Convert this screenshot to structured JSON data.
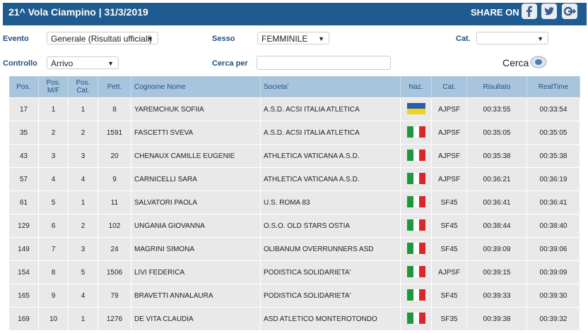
{
  "header": {
    "title": "21^ Vola Ciampino | 31/3/2019",
    "share": "SHARE ON"
  },
  "filters": {
    "evento_label": "Evento",
    "evento_value": "Generale (Risultati ufficiali)",
    "sesso_label": "Sesso",
    "sesso_value": "FEMMINILE",
    "cat_label": "Cat.",
    "controllo_label": "Controllo",
    "controllo_value": "Arrivo",
    "cerca_per_label": "Cerca per",
    "cerca_button": "Cerca"
  },
  "table": {
    "columns": [
      "Pos.",
      "Pos. M/F",
      "Pos. Cat.",
      "Pett.",
      "Cognome Nome",
      "Societa'",
      "Naz.",
      "Cat.",
      "Risultato",
      "RealTime"
    ],
    "rows": [
      {
        "pos": 17,
        "pos_mf": 1,
        "pos_cat": 1,
        "pett": 8,
        "name": "YAREMCHUK SOFIIA",
        "club": "A.S.D. ACSI ITALIA ATLETICA",
        "cat": "AJPSF",
        "result": "00:33:55",
        "realtime": "00:33:54"
      },
      {
        "pos": 35,
        "pos_mf": 2,
        "pos_cat": 2,
        "pett": 1591,
        "name": "FASCETTI SVEVA",
        "club": "A.S.D. ACSI ITALIA ATLETICA",
        "cat": "AJPSF",
        "result": "00:35:05",
        "realtime": "00:35:05"
      },
      {
        "pos": 43,
        "pos_mf": 3,
        "pos_cat": 3,
        "pett": 20,
        "name": "CHENAUX CAMILLE EUGENIE",
        "club": "ATHLETICA VATICANA A.S.D.",
        "cat": "AJPSF",
        "result": "00:35:38",
        "realtime": "00:35:38"
      },
      {
        "pos": 57,
        "pos_mf": 4,
        "pos_cat": 4,
        "pett": 9,
        "name": "CARNICELLI SARA",
        "club": "ATHLETICA VATICANA A.S.D.",
        "cat": "AJPSF",
        "result": "00:36:21",
        "realtime": "00:36:19"
      },
      {
        "pos": 61,
        "pos_mf": 5,
        "pos_cat": 1,
        "pett": 11,
        "name": "SALVATORI PAOLA",
        "club": "U.S. ROMA 83",
        "cat": "SF45",
        "result": "00:36:41",
        "realtime": "00:36:41"
      },
      {
        "pos": 129,
        "pos_mf": 6,
        "pos_cat": 2,
        "pett": 102,
        "name": "UNGANIA GIOVANNA",
        "club": "O.S.O. OLD STARS OSTIA",
        "cat": "SF45",
        "result": "00:38:44",
        "realtime": "00:38:40"
      },
      {
        "pos": 149,
        "pos_mf": 7,
        "pos_cat": 3,
        "pett": 24,
        "name": "MAGRINI SIMONA",
        "club": "OLIBANUM OVERRUNNERS ASD",
        "cat": "SF45",
        "result": "00:39:09",
        "realtime": "00:39:06"
      },
      {
        "pos": 154,
        "pos_mf": 8,
        "pos_cat": 5,
        "pett": 1506,
        "name": "LIVI FEDERICA",
        "club": "PODISTICA SOLIDARIETA'",
        "cat": "AJPSF",
        "result": "00:39:15",
        "realtime": "00:39:09"
      },
      {
        "pos": 165,
        "pos_mf": 9,
        "pos_cat": 4,
        "pett": 79,
        "name": "BRAVETTI ANNALAURA",
        "club": "PODISTICA SOLIDARIETA'",
        "cat": "SF45",
        "result": "00:39:33",
        "realtime": "00:39:30"
      },
      {
        "pos": 169,
        "pos_mf": 10,
        "pos_cat": 1,
        "pett": 1276,
        "name": "DE VITA CLAUDIA",
        "club": "ASD ATLETICO MONTEROTONDO",
        "cat": "SF35",
        "result": "00:39:38",
        "realtime": "00:39:32"
      }
    ]
  }
}
